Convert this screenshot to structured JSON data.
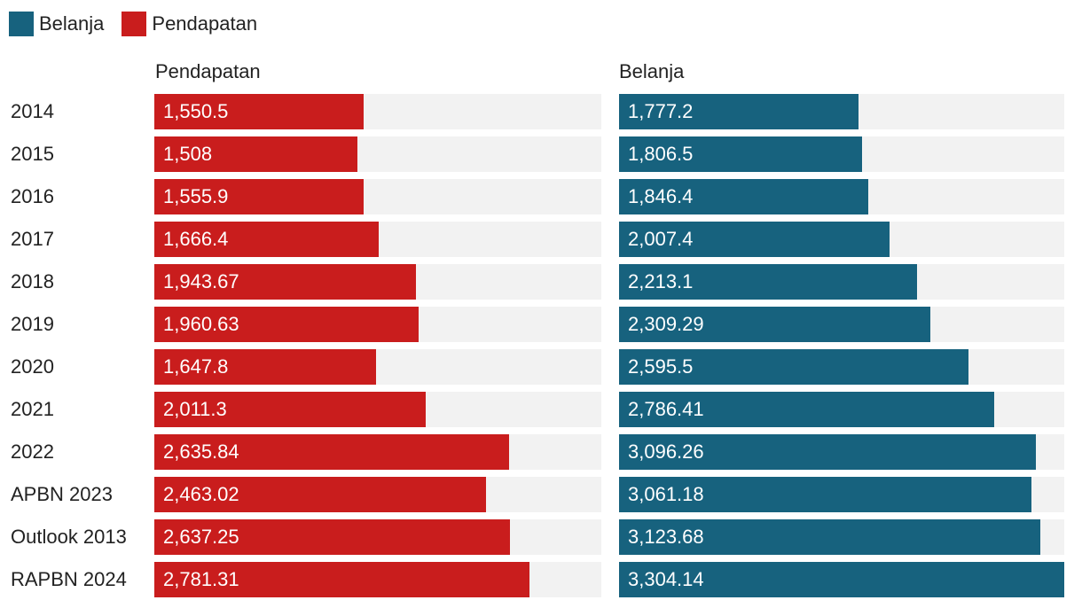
{
  "chart_data": {
    "type": "bar",
    "orientation": "horizontal",
    "legend": [
      {
        "name": "Belanja",
        "color": "#17627e"
      },
      {
        "name": "Pendapatan",
        "color": "#c91d1d"
      }
    ],
    "categories": [
      "2014",
      "2015",
      "2016",
      "2017",
      "2018",
      "2019",
      "2020",
      "2021",
      "2022",
      "APBN 2023",
      "Outlook 2013",
      "RAPBN 2024"
    ],
    "panels": [
      {
        "title": "Pendapatan",
        "color": "#c91d1d",
        "values": [
          1550.5,
          1508,
          1555.9,
          1666.4,
          1943.67,
          1960.63,
          1647.8,
          2011.3,
          2635.84,
          2463.02,
          2637.25,
          2781.31
        ],
        "labels": [
          "1,550.5",
          "1,508",
          "1,555.9",
          "1,666.4",
          "1,943.67",
          "1,960.63",
          "1,647.8",
          "2,011.3",
          "2,635.84",
          "2,463.02",
          "2,637.25",
          "2,781.31"
        ]
      },
      {
        "title": "Belanja",
        "color": "#17627e",
        "values": [
          1777.2,
          1806.5,
          1846.4,
          2007.4,
          2213.1,
          2309.29,
          2595.5,
          2786.41,
          3096.26,
          3061.18,
          3123.68,
          3304.14
        ],
        "labels": [
          "1,777.2",
          "1,806.5",
          "1,846.4",
          "2,007.4",
          "2,213.1",
          "2,309.29",
          "2,595.5",
          "2,786.41",
          "3,096.26",
          "3,061.18",
          "3,123.68",
          "3,304.14"
        ]
      }
    ],
    "xlim": [
      0,
      3304.14
    ],
    "track_color": "#f2f2f2"
  }
}
